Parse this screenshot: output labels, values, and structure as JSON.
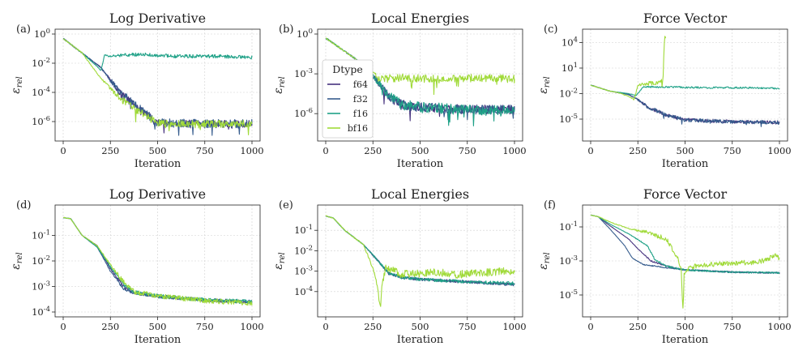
{
  "figure": {
    "xlabel": "Iteration",
    "ylabel": "ε_rel",
    "legend_title": "Dtype"
  },
  "colors": {
    "f64": "#46327e",
    "f32": "#365c8d",
    "f16": "#1fa187",
    "bf16": "#a0da39"
  },
  "chart_data": [
    {
      "type": "line",
      "panel": "(a)",
      "title": "Log Derivative",
      "xlabel": "Iteration",
      "ylabel": "ε_rel",
      "yscale": "log",
      "xlim": [
        0,
        1000
      ],
      "ylim": [
        1e-07,
        1
      ],
      "xticks": [
        0,
        250,
        500,
        750,
        1000
      ],
      "yticks": [
        {
          "v": 1,
          "t": "10^0"
        },
        {
          "v": 0.01,
          "t": "10^-2"
        },
        {
          "v": 0.0001,
          "t": "10^-4"
        },
        {
          "v": 1e-06,
          "t": "10^-6"
        }
      ],
      "series": [
        {
          "name": "f64",
          "x": [
            0,
            100,
            200,
            300,
            375,
            500,
            750,
            1000
          ],
          "y": [
            0.5,
            0.05,
            0.005,
            0.0001,
            1.5e-05,
            8e-07,
            7e-07,
            7e-07
          ],
          "noise": 0.25
        },
        {
          "name": "f32",
          "x": [
            0,
            100,
            200,
            300,
            375,
            500,
            750,
            1000
          ],
          "y": [
            0.5,
            0.05,
            0.005,
            0.0001,
            1.5e-05,
            8e-07,
            7e-07,
            7e-07
          ],
          "noise": 0.3
        },
        {
          "name": "f16",
          "x": [
            0,
            100,
            180,
            200,
            220,
            240,
            400,
            600,
            800,
            1000
          ],
          "y": [
            0.5,
            0.05,
            0.006,
            0.003,
            0.04,
            0.03,
            0.04,
            0.03,
            0.03,
            0.025
          ],
          "noise": 0.12
        },
        {
          "name": "bf16",
          "x": [
            0,
            100,
            200,
            300,
            375,
            500,
            750,
            1000
          ],
          "y": [
            0.5,
            0.05,
            0.0009,
            4e-05,
            8e-06,
            8e-07,
            7e-07,
            7e-07
          ],
          "noise": 0.25
        }
      ]
    },
    {
      "type": "line",
      "panel": "(b)",
      "title": "Local Energies",
      "xlabel": "Iteration",
      "ylabel": "ε_rel",
      "yscale": "log",
      "xlim": [
        0,
        1000
      ],
      "ylim": [
        2e-08,
        1
      ],
      "xticks": [
        0,
        250,
        500,
        750,
        1000
      ],
      "yticks": [
        {
          "v": 1,
          "t": "10^0"
        },
        {
          "v": 0.001,
          "t": "10^-3"
        },
        {
          "v": 1e-06,
          "t": "10^-6"
        }
      ],
      "legend": true,
      "series": [
        {
          "name": "f64",
          "x": [
            0,
            100,
            200,
            280,
            340,
            400,
            500,
            750,
            1000
          ],
          "y": [
            0.5,
            0.05,
            0.005,
            0.0002,
            1.5e-05,
            5e-06,
            3e-06,
            2e-06,
            2e-06
          ],
          "noise": 0.35
        },
        {
          "name": "f32",
          "x": [
            0,
            100,
            200,
            280,
            340,
            400,
            500,
            750,
            1000
          ],
          "y": [
            0.5,
            0.05,
            0.005,
            0.0002,
            1.5e-05,
            5e-06,
            3e-06,
            2e-06,
            2e-06
          ],
          "noise": 0.35
        },
        {
          "name": "f16",
          "x": [
            0,
            100,
            200,
            280,
            340,
            400,
            500,
            750,
            1000
          ],
          "y": [
            0.5,
            0.05,
            0.005,
            0.0002,
            2e-05,
            5e-06,
            3e-06,
            2e-06,
            2e-06
          ],
          "noise": 0.4
        },
        {
          "name": "bf16",
          "x": [
            0,
            100,
            200,
            240,
            280,
            400,
            600,
            800,
            1000
          ],
          "y": [
            0.5,
            0.05,
            0.005,
            0.002,
            0.0004,
            0.0005,
            0.0004,
            0.0005,
            0.0004
          ],
          "noise": 0.3
        }
      ]
    },
    {
      "type": "line",
      "panel": "(c)",
      "title": "Force Vector",
      "xlabel": "Iteration",
      "ylabel": "ε_rel",
      "yscale": "log",
      "xlim": [
        0,
        1000
      ],
      "ylim": [
        1e-07,
        100000
      ],
      "xticks": [
        0,
        250,
        500,
        750,
        1000
      ],
      "yticks": [
        {
          "v": 10000,
          "t": "10^4"
        },
        {
          "v": 10,
          "t": "10^1"
        },
        {
          "v": 0.01,
          "t": "10^-2"
        },
        {
          "v": 1e-05,
          "t": "10^-5"
        }
      ],
      "series": [
        {
          "name": "f64",
          "x": [
            0,
            100,
            200,
            250,
            300,
            400,
            500,
            750,
            1000
          ],
          "y": [
            0.1,
            0.02,
            0.008,
            0.002,
            0.0003,
            3e-05,
            8e-06,
            5e-06,
            4e-06
          ],
          "noise": 0.2
        },
        {
          "name": "f32",
          "x": [
            0,
            100,
            200,
            250,
            300,
            400,
            500,
            750,
            1000
          ],
          "y": [
            0.1,
            0.02,
            0.008,
            0.002,
            0.0003,
            3e-05,
            8e-06,
            5e-06,
            4e-06
          ],
          "noise": 0.22
        },
        {
          "name": "f16",
          "x": [
            0,
            100,
            200,
            240,
            280,
            400,
            600,
            800,
            1000
          ],
          "y": [
            0.1,
            0.02,
            0.01,
            0.006,
            0.06,
            0.06,
            0.05,
            0.05,
            0.04
          ],
          "noise": 0.1
        },
        {
          "name": "bf16",
          "x": [
            0,
            100,
            150,
            200,
            230,
            250,
            300,
            360,
            380,
            384,
            388,
            392,
            396
          ],
          "y": [
            0.1,
            0.02,
            0.012,
            0.005,
            0.002,
            0.1,
            0.15,
            0.2,
            0.3,
            2,
            1000,
            30000,
            50000
          ],
          "noise": 0.25
        }
      ]
    },
    {
      "type": "line",
      "panel": "(d)",
      "title": "Log Derivative",
      "xlabel": "Iteration",
      "ylabel": "ε_rel",
      "yscale": "log",
      "xlim": [
        0,
        1000
      ],
      "ylim": [
        0.0001,
        1
      ],
      "xticks": [
        0,
        250,
        500,
        750,
        1000
      ],
      "yticks": [
        {
          "v": 0.1,
          "t": "10^-1"
        },
        {
          "v": 0.01,
          "t": "10^-2"
        },
        {
          "v": 0.001,
          "t": "10^-3"
        },
        {
          "v": 0.0001,
          "t": "10^-4"
        }
      ],
      "series": [
        {
          "name": "f64",
          "x": [
            0,
            40,
            100,
            180,
            250,
            320,
            380,
            500,
            750,
            1000
          ],
          "y": [
            0.5,
            0.45,
            0.1,
            0.04,
            0.005,
            0.001,
            0.00055,
            0.0004,
            0.00028,
            0.00024
          ],
          "noise": 0.05
        },
        {
          "name": "f32",
          "x": [
            0,
            40,
            100,
            180,
            250,
            320,
            380,
            500,
            750,
            1000
          ],
          "y": [
            0.5,
            0.45,
            0.1,
            0.035,
            0.004,
            0.0008,
            0.00055,
            0.00042,
            0.0003,
            0.00026
          ],
          "noise": 0.06
        },
        {
          "name": "f16",
          "x": [
            0,
            40,
            100,
            180,
            250,
            320,
            380,
            500,
            750,
            1000
          ],
          "y": [
            0.5,
            0.45,
            0.1,
            0.035,
            0.006,
            0.0012,
            0.0006,
            0.00042,
            0.0003,
            0.00025
          ],
          "noise": 0.08
        },
        {
          "name": "bf16",
          "x": [
            0,
            40,
            100,
            180,
            250,
            320,
            380,
            500,
            750,
            1000
          ],
          "y": [
            0.5,
            0.45,
            0.1,
            0.04,
            0.007,
            0.0015,
            0.0006,
            0.00042,
            0.00028,
            0.00022
          ],
          "noise": 0.1
        }
      ]
    },
    {
      "type": "line",
      "panel": "(e)",
      "title": "Local Energies",
      "xlabel": "Iteration",
      "ylabel": "ε_rel",
      "yscale": "log",
      "xlim": [
        0,
        1000
      ],
      "ylim": [
        1e-05,
        1
      ],
      "xticks": [
        0,
        250,
        500,
        750,
        1000
      ],
      "yticks": [
        {
          "v": 0.1,
          "t": "10^-1"
        },
        {
          "v": 0.01,
          "t": "10^-2"
        },
        {
          "v": 0.001,
          "t": "10^-3"
        },
        {
          "v": 0.0001,
          "t": "10^-4"
        }
      ],
      "series": [
        {
          "name": "f64",
          "x": [
            0,
            40,
            100,
            200,
            280,
            330,
            400,
            500,
            750,
            1000
          ],
          "y": [
            0.5,
            0.4,
            0.1,
            0.02,
            0.003,
            0.0008,
            0.0005,
            0.0004,
            0.0003,
            0.00022
          ],
          "noise": 0.06
        },
        {
          "name": "f32",
          "x": [
            0,
            40,
            100,
            200,
            280,
            330,
            400,
            500,
            750,
            1000
          ],
          "y": [
            0.5,
            0.4,
            0.1,
            0.02,
            0.003,
            0.0008,
            0.0005,
            0.0004,
            0.0003,
            0.00022
          ],
          "noise": 0.07
        },
        {
          "name": "f16",
          "x": [
            0,
            40,
            100,
            200,
            280,
            330,
            400,
            500,
            750,
            1000
          ],
          "y": [
            0.5,
            0.4,
            0.1,
            0.02,
            0.003,
            0.0009,
            0.0005,
            0.0004,
            0.0003,
            0.00025
          ],
          "noise": 0.08
        },
        {
          "name": "bf16",
          "x": [
            0,
            40,
            100,
            200,
            260,
            280,
            290,
            300,
            320,
            400,
            500,
            600,
            700,
            800,
            900,
            1000
          ],
          "y": [
            0.5,
            0.4,
            0.1,
            0.02,
            0.0008,
            6e-05,
            2e-05,
            0.0003,
            0.0015,
            0.0007,
            0.0008,
            0.0009,
            0.0007,
            0.0008,
            0.0009,
            0.0011
          ],
          "noise": 0.2
        }
      ]
    },
    {
      "type": "line",
      "panel": "(f)",
      "title": "Force Vector",
      "xlabel": "Iteration",
      "ylabel": "ε_rel",
      "yscale": "log",
      "xlim": [
        0,
        1000
      ],
      "ylim": [
        1e-06,
        1
      ],
      "xticks": [
        0,
        250,
        500,
        750,
        1000
      ],
      "yticks": [
        {
          "v": 0.1,
          "t": "10^-1"
        },
        {
          "v": 0.001,
          "t": "10^-3"
        },
        {
          "v": 1e-05,
          "t": "10^-5"
        }
      ],
      "series": [
        {
          "name": "f64",
          "x": [
            0,
            40,
            100,
            200,
            260,
            320,
            400,
            500,
            750,
            1000
          ],
          "y": [
            0.5,
            0.4,
            0.12,
            0.02,
            0.004,
            0.001,
            0.0005,
            0.0003,
            0.00022,
            0.0002
          ],
          "noise": 0.04
        },
        {
          "name": "f32",
          "x": [
            0,
            40,
            100,
            180,
            220,
            280,
            400,
            500,
            750,
            1000
          ],
          "y": [
            0.5,
            0.4,
            0.08,
            0.008,
            0.0015,
            0.0006,
            0.0004,
            0.0003,
            0.00022,
            0.0002
          ],
          "noise": 0.04
        },
        {
          "name": "f16",
          "x": [
            0,
            40,
            100,
            200,
            300,
            340,
            400,
            500,
            750,
            1000
          ],
          "y": [
            0.5,
            0.4,
            0.15,
            0.04,
            0.008,
            0.0012,
            0.0005,
            0.0003,
            0.00022,
            0.0002
          ],
          "noise": 0.05
        },
        {
          "name": "bf16",
          "x": [
            0,
            40,
            100,
            200,
            300,
            400,
            440,
            470,
            480,
            485,
            490,
            495,
            520,
            600,
            750,
            900,
            980,
            1000
          ],
          "y": [
            0.5,
            0.4,
            0.2,
            0.08,
            0.05,
            0.02,
            0.004,
            0.0008,
            0.0003,
            1e-05,
            1e-06,
            0.0002,
            0.0004,
            0.0006,
            0.0007,
            0.0009,
            0.002,
            0.0015
          ],
          "noise": 0.15
        }
      ]
    }
  ]
}
